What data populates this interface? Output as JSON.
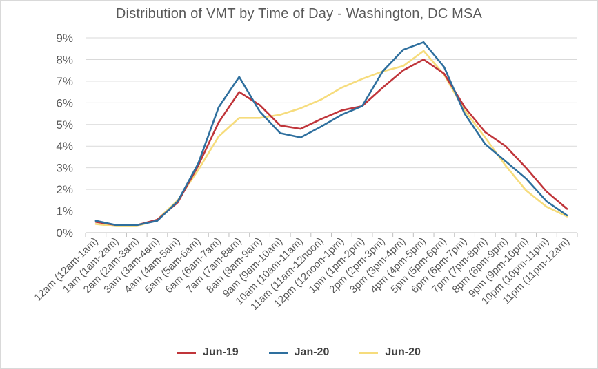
{
  "chart_data": {
    "type": "line",
    "title": "Distribution  of VMT by Time of Day - Washington,  DC MSA",
    "xlabel": "",
    "ylabel": "",
    "ylim": [
      0,
      9
    ],
    "y_ticks": [
      "0%",
      "1%",
      "2%",
      "3%",
      "4%",
      "5%",
      "6%",
      "7%",
      "8%",
      "9%"
    ],
    "y_unit": "%",
    "grid": true,
    "legend_position": "bottom",
    "categories": [
      "12am (12am-1am)",
      "1am (1am-2am)",
      "2am (2am-3am)",
      "3am (3am-4am)",
      "4am (4am-5am)",
      "5am (5am-6am)",
      "6am (6am-7am)",
      "7am (7am-8am)",
      "8am (8am-9am)",
      "9am (9am-10am)",
      "10am (10am-11am)",
      "11am (11am-12noon)",
      "12pm (12noon-1pm)",
      "1pm (1pm-2pm)",
      "2pm (2pm-3pm)",
      "3pm (3pm-4pm)",
      "4pm (4pm-5pm)",
      "5pm (5pm-6pm)",
      "6pm (6pm-7pm)",
      "7pm (7pm-8pm)",
      "8pm (8pm-9pm)",
      "9pm (9pm-10pm)",
      "10pm (10pm-11pm)",
      "11pm (11pm-12am)"
    ],
    "series": [
      {
        "name": "Jun-19",
        "color": "#c0353a",
        "values": [
          0.5,
          0.35,
          0.35,
          0.6,
          1.4,
          3.1,
          5.1,
          6.5,
          5.9,
          4.95,
          4.8,
          5.25,
          5.65,
          5.85,
          6.7,
          7.5,
          8.0,
          7.35,
          5.8,
          4.65,
          4.0,
          3.0,
          1.9,
          1.1
        ]
      },
      {
        "name": "Jan-20",
        "color": "#2e6f9e",
        "values": [
          0.55,
          0.35,
          0.35,
          0.55,
          1.45,
          3.2,
          5.8,
          7.2,
          5.6,
          4.6,
          4.4,
          4.9,
          5.45,
          5.85,
          7.45,
          8.45,
          8.8,
          7.65,
          5.5,
          4.1,
          3.3,
          2.5,
          1.45,
          0.8
        ]
      },
      {
        "name": "Jun-20",
        "color": "#f6dc7c",
        "values": [
          0.4,
          0.3,
          0.3,
          0.6,
          1.5,
          2.9,
          4.45,
          5.3,
          5.3,
          5.45,
          5.75,
          6.15,
          6.7,
          7.1,
          7.45,
          7.7,
          8.4,
          7.3,
          5.65,
          4.4,
          3.1,
          1.95,
          1.2,
          0.75
        ]
      }
    ]
  }
}
